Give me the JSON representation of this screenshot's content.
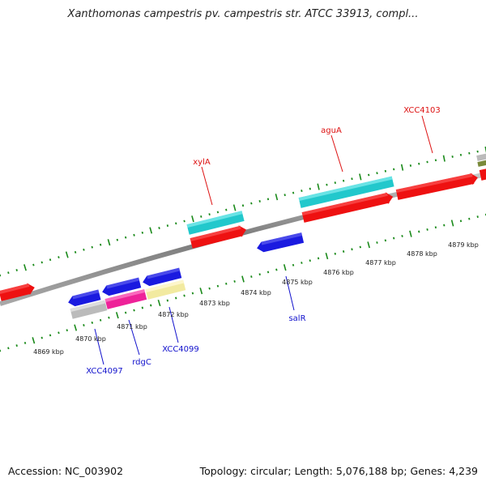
{
  "title": "Xanthomonas campestris pv. campestris str. ATCC 33913, compl...",
  "footer": {
    "accession": "Accession: NC_003902",
    "summary": "Topology: circular; Length: 5,076,188 bp; Genes: 4,239"
  },
  "colors": {
    "forward_cds": "#ee1111",
    "reverse_cds": "#1a1ae0",
    "cyan": "#22c8cc",
    "pink": "#ee2299",
    "yellow": "#f2eaa0",
    "gray": "#bbbbbb",
    "tick": "#1a8a1a",
    "backbone": "#888888",
    "forward_label": "#dd1111",
    "reverse_label": "#1111cc"
  },
  "tick_labels": [
    "4869 kbp",
    "4870 kbp",
    "4871 kbp",
    "4872 kbp",
    "4873 kbp",
    "4874 kbp",
    "4875 kbp",
    "4876 kbp",
    "4877 kbp",
    "4878 kbp",
    "4879 kbp"
  ],
  "genes": {
    "forward": [
      "xylA",
      "aguA",
      "XCC4103"
    ],
    "reverse": [
      "salR",
      "XCC4099",
      "rdgC",
      "XCC4097"
    ]
  }
}
